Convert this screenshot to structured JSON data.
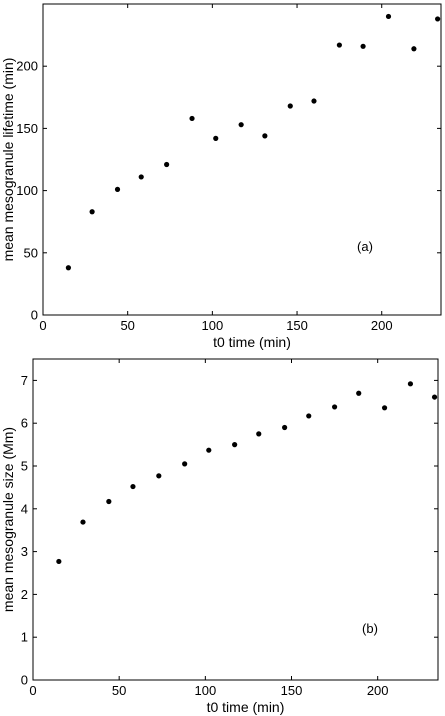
{
  "chart_data": [
    {
      "type": "scatter",
      "panel_label": "(a)",
      "xlabel": "t0 time (min)",
      "ylabel": "mean mesogranule lifetime (min)",
      "xlim": [
        0,
        235
      ],
      "ylim": [
        0,
        250
      ],
      "xticks": [
        0,
        50,
        100,
        150,
        200
      ],
      "yticks": [
        0,
        50,
        100,
        150,
        200
      ],
      "grid": false,
      "series": [
        {
          "x": [
            15,
            29,
            44,
            58,
            73,
            88,
            102,
            117,
            131,
            146,
            160,
            175,
            189,
            204,
            219,
            233
          ],
          "y": [
            38,
            83,
            101,
            111,
            121,
            158,
            142,
            153,
            144,
            168,
            172,
            217,
            216,
            240,
            214,
            238
          ]
        }
      ]
    },
    {
      "type": "scatter",
      "panel_label": "(b)",
      "xlabel": "t0 time (min)",
      "ylabel": "mean mesogranule size (Mm)",
      "xlim": [
        0,
        235
      ],
      "ylim": [
        0,
        7.5
      ],
      "xticks": [
        0,
        50,
        100,
        150,
        200
      ],
      "yticks": [
        0,
        1,
        2,
        3,
        4,
        5,
        6,
        7
      ],
      "grid": false,
      "series": [
        {
          "x": [
            15,
            29,
            44,
            58,
            73,
            88,
            102,
            117,
            131,
            146,
            160,
            175,
            189,
            204,
            219,
            233
          ],
          "y": [
            2.77,
            3.69,
            4.17,
            4.52,
            4.77,
            5.05,
            5.37,
            5.5,
            5.75,
            5.9,
            6.17,
            6.38,
            6.7,
            6.36,
            6.92,
            6.61
          ]
        }
      ]
    }
  ]
}
